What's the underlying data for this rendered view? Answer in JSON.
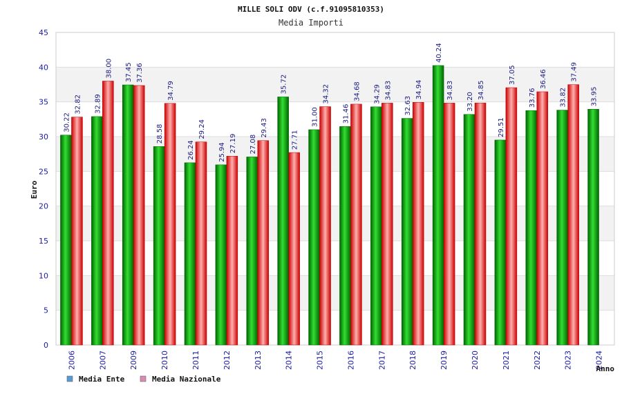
{
  "chart_data": {
    "type": "bar",
    "title": "MILLE SOLI ODV (c.f.91095810353)",
    "subtitle": "Media Importi",
    "xlabel": "Anno",
    "ylabel": "Euro",
    "ylim": [
      0,
      45
    ],
    "yticks": [
      "0",
      "5",
      "10",
      "15",
      "20",
      "25",
      "30",
      "35",
      "40",
      "45"
    ],
    "grid": true,
    "legend_position": "bottom-left",
    "categories": [
      "2006",
      "2007",
      "2009",
      "2010",
      "2011",
      "2012",
      "2013",
      "2014",
      "2015",
      "2016",
      "2017",
      "2018",
      "2019",
      "2020",
      "2021",
      "2022",
      "2023",
      "2024"
    ],
    "series": [
      {
        "name": "Media Ente",
        "color": "#00aa00",
        "values": [
          30.22,
          32.89,
          37.45,
          28.58,
          26.24,
          25.94,
          27.08,
          35.72,
          31.0,
          31.46,
          34.29,
          32.63,
          40.24,
          33.2,
          29.51,
          33.76,
          33.82,
          33.95
        ],
        "labels": [
          "30.22",
          "32.89",
          "37.45",
          "28.58",
          "26.24",
          "25.94",
          "27.08",
          "35.72",
          "31.00",
          "31.46",
          "34.29",
          "32.63",
          "40.24",
          "33.20",
          "29.51",
          "33.76",
          "33.82",
          "33.95"
        ]
      },
      {
        "name": "Media Nazionale",
        "color": "#ee1111",
        "values": [
          32.82,
          38.0,
          37.36,
          34.79,
          29.24,
          27.19,
          29.43,
          27.71,
          34.32,
          34.68,
          34.83,
          34.94,
          34.83,
          34.85,
          37.05,
          36.46,
          37.49,
          null
        ],
        "labels": [
          "32.82",
          "38.00",
          "37.36",
          "34.79",
          "29.24",
          "27.19",
          "29.43",
          "27.71",
          "34.32",
          "34.68",
          "34.83",
          "34.94",
          "34.83",
          "34.85",
          "37.05",
          "36.46",
          "37.49",
          null
        ]
      }
    ],
    "legend": [
      {
        "label": "Media Ente",
        "swatch_color": "#5b9bd5"
      },
      {
        "label": "Media Nazionale",
        "swatch_color": "#d98cb3"
      }
    ]
  }
}
